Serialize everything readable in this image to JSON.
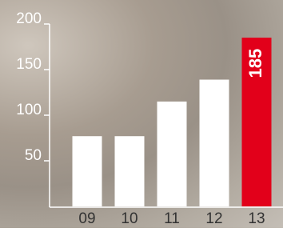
{
  "chart_data": {
    "type": "bar",
    "categories": [
      "09",
      "10",
      "11",
      "12",
      "13"
    ],
    "values": [
      77,
      77,
      115,
      139,
      185
    ],
    "colors": [
      "#ffffff",
      "#ffffff",
      "#ffffff",
      "#ffffff",
      "#e2001a"
    ],
    "ylim": [
      0,
      200
    ],
    "yticks": [
      50,
      100,
      150,
      200
    ]
  }
}
